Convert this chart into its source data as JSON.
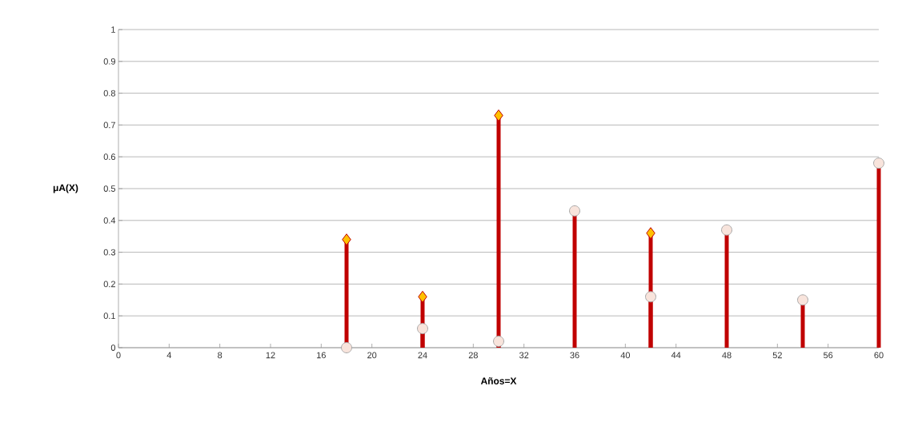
{
  "chart_data": {
    "type": "lollipop",
    "xlabel": "Años=X",
    "ylabel": "μA(X)",
    "x": [
      18,
      24,
      30,
      36,
      42,
      48,
      54,
      60
    ],
    "series": [
      {
        "color": "#ffc000",
        "marker": "diamond",
        "values": [
          0.34,
          0.16,
          0.73,
          null,
          0.36,
          null,
          null,
          null
        ]
      },
      {
        "color": "#f8e4dc",
        "marker": "circle",
        "values": [
          0,
          0.06,
          0.02,
          0.43,
          0.16,
          0.37,
          0.15,
          0.58
        ]
      }
    ],
    "xlim": [
      0,
      60
    ],
    "xticks": [
      0,
      4,
      8,
      12,
      16,
      20,
      24,
      28,
      32,
      36,
      40,
      44,
      48,
      52,
      56,
      60
    ],
    "ylim": [
      0,
      1
    ],
    "yticks": [
      0,
      0.1,
      0.2,
      0.3,
      0.4,
      0.5,
      0.6,
      0.7,
      0.8,
      0.9,
      1
    ],
    "grid": "y"
  }
}
